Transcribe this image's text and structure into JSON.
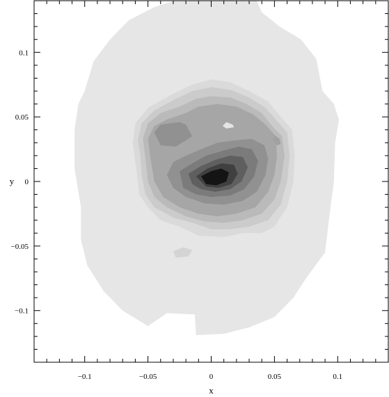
{
  "chart_data": {
    "type": "contour",
    "title": "",
    "xlabel": "x",
    "ylabel": "y",
    "xlim": [
      -0.14,
      0.14
    ],
    "ylim": [
      -0.14,
      0.14
    ],
    "xticks": [
      -0.1,
      -0.05,
      0,
      0.05,
      0.1
    ],
    "yticks": [
      -0.1,
      -0.05,
      0,
      0.05,
      0.1
    ],
    "xtick_labels": [
      "−0.1",
      "−0.05",
      "0",
      "0.05",
      "0.1"
    ],
    "ytick_labels": [
      "−0.1",
      "−0.05",
      "0",
      "0.05",
      "0.1"
    ],
    "grid": false,
    "levels": [
      {
        "level": 1,
        "color": "#e6e6e6",
        "polygon": [
          [
            -0.029,
            0.14
          ],
          [
            0.036,
            0.14
          ],
          [
            0.04,
            0.131
          ],
          [
            0.054,
            0.12
          ],
          [
            0.071,
            0.11
          ],
          [
            0.083,
            0.095
          ],
          [
            0.088,
            0.07
          ],
          [
            0.097,
            0.06
          ],
          [
            0.101,
            0.048
          ],
          [
            0.098,
            0.03
          ],
          [
            0.097,
            0.0
          ],
          [
            0.093,
            -0.03
          ],
          [
            0.09,
            -0.055
          ],
          [
            0.075,
            -0.075
          ],
          [
            0.065,
            -0.09
          ],
          [
            0.05,
            -0.105
          ],
          [
            0.03,
            -0.113
          ],
          [
            0.01,
            -0.118
          ],
          [
            -0.012,
            -0.119
          ],
          [
            -0.013,
            -0.103
          ],
          [
            -0.035,
            -0.102
          ],
          [
            -0.05,
            -0.112
          ],
          [
            -0.07,
            -0.1
          ],
          [
            -0.085,
            -0.085
          ],
          [
            -0.098,
            -0.065
          ],
          [
            -0.103,
            -0.045
          ],
          [
            -0.103,
            -0.02
          ],
          [
            -0.108,
            0.01
          ],
          [
            -0.108,
            0.04
          ],
          [
            -0.105,
            0.06
          ],
          [
            -0.1,
            0.07
          ],
          [
            -0.093,
            0.093
          ],
          [
            -0.08,
            0.11
          ],
          [
            -0.065,
            0.125
          ],
          [
            -0.045,
            0.135
          ]
        ]
      },
      {
        "level": 2,
        "color": "#dadada",
        "polygon": [
          [
            -0.062,
            0.03
          ],
          [
            -0.06,
            0.045
          ],
          [
            -0.05,
            0.057
          ],
          [
            -0.03,
            0.068
          ],
          [
            -0.015,
            0.075
          ],
          [
            0.0,
            0.079
          ],
          [
            0.015,
            0.077
          ],
          [
            0.03,
            0.07
          ],
          [
            0.045,
            0.062
          ],
          [
            0.055,
            0.05
          ],
          [
            0.064,
            0.04
          ],
          [
            0.066,
            0.02
          ],
          [
            0.065,
            0.0
          ],
          [
            0.06,
            -0.02
          ],
          [
            0.05,
            -0.035
          ],
          [
            0.04,
            -0.04
          ],
          [
            0.025,
            -0.04
          ],
          [
            0.01,
            -0.043
          ],
          [
            -0.01,
            -0.042
          ],
          [
            -0.025,
            -0.035
          ],
          [
            -0.04,
            -0.03
          ],
          [
            -0.05,
            -0.02
          ],
          [
            -0.057,
            -0.01
          ],
          [
            -0.058,
            0.0
          ],
          [
            -0.06,
            0.015
          ]
        ]
      },
      {
        "level": 3,
        "color": "#cbcbcb",
        "polygon": [
          [
            -0.058,
            0.032
          ],
          [
            -0.055,
            0.045
          ],
          [
            -0.045,
            0.055
          ],
          [
            -0.03,
            0.063
          ],
          [
            -0.015,
            0.07
          ],
          [
            0.0,
            0.073
          ],
          [
            0.015,
            0.071
          ],
          [
            0.03,
            0.065
          ],
          [
            0.043,
            0.057
          ],
          [
            0.052,
            0.047
          ],
          [
            0.06,
            0.038
          ],
          [
            0.062,
            0.02
          ],
          [
            0.06,
            0.0
          ],
          [
            0.055,
            -0.018
          ],
          [
            0.045,
            -0.03
          ],
          [
            0.03,
            -0.035
          ],
          [
            0.015,
            -0.037
          ],
          [
            0.0,
            -0.037
          ],
          [
            -0.015,
            -0.032
          ],
          [
            -0.03,
            -0.028
          ],
          [
            -0.045,
            -0.02
          ],
          [
            -0.052,
            -0.01
          ],
          [
            -0.055,
            0.005
          ],
          [
            -0.056,
            0.02
          ]
        ]
      },
      {
        "level": 4,
        "color": "#bababa",
        "polygon": [
          [
            -0.054,
            0.033
          ],
          [
            -0.05,
            0.045
          ],
          [
            -0.04,
            0.053
          ],
          [
            -0.025,
            0.058
          ],
          [
            -0.012,
            0.064
          ],
          [
            0.0,
            0.066
          ],
          [
            0.015,
            0.065
          ],
          [
            0.028,
            0.06
          ],
          [
            0.04,
            0.053
          ],
          [
            0.048,
            0.043
          ],
          [
            0.056,
            0.035
          ],
          [
            0.058,
            0.02
          ],
          [
            0.055,
            0.0
          ],
          [
            0.05,
            -0.014
          ],
          [
            0.04,
            -0.025
          ],
          [
            0.025,
            -0.03
          ],
          [
            0.01,
            -0.032
          ],
          [
            -0.005,
            -0.031
          ],
          [
            -0.02,
            -0.027
          ],
          [
            -0.035,
            -0.02
          ],
          [
            -0.045,
            -0.012
          ],
          [
            -0.05,
            0.0
          ],
          [
            -0.052,
            0.018
          ]
        ]
      },
      {
        "level": 5,
        "color": "#a6a6a6",
        "polygon": [
          [
            -0.05,
            0.033
          ],
          [
            -0.045,
            0.043
          ],
          [
            -0.035,
            0.048
          ],
          [
            -0.02,
            0.053
          ],
          [
            -0.01,
            0.058
          ],
          [
            0.005,
            0.06
          ],
          [
            0.02,
            0.058
          ],
          [
            0.033,
            0.052
          ],
          [
            0.043,
            0.044
          ],
          [
            0.051,
            0.035
          ],
          [
            0.052,
            0.02
          ],
          [
            0.05,
            0.005
          ],
          [
            0.045,
            -0.008
          ],
          [
            0.035,
            -0.02
          ],
          [
            0.02,
            -0.025
          ],
          [
            0.005,
            -0.027
          ],
          [
            -0.01,
            -0.025
          ],
          [
            -0.025,
            -0.02
          ],
          [
            -0.038,
            -0.012
          ],
          [
            -0.045,
            0.0
          ],
          [
            -0.048,
            0.018
          ]
        ]
      },
      {
        "level": 6,
        "color": "#919191",
        "polygon": [
          [
            -0.045,
            0.038
          ],
          [
            -0.04,
            0.044
          ],
          [
            -0.025,
            0.046
          ],
          [
            -0.02,
            0.044
          ],
          [
            -0.015,
            0.035
          ],
          [
            -0.028,
            0.027
          ],
          [
            -0.04,
            0.028
          ]
        ]
      },
      {
        "level": 6,
        "color": "#919191",
        "polygon": [
          [
            -0.03,
            0.015
          ],
          [
            -0.02,
            0.02
          ],
          [
            -0.008,
            0.025
          ],
          [
            0.005,
            0.03
          ],
          [
            0.02,
            0.032
          ],
          [
            0.032,
            0.033
          ],
          [
            0.042,
            0.028
          ],
          [
            0.045,
            0.018
          ],
          [
            0.043,
            0.005
          ],
          [
            0.036,
            -0.008
          ],
          [
            0.025,
            -0.015
          ],
          [
            0.01,
            -0.018
          ],
          [
            -0.005,
            -0.017
          ],
          [
            -0.02,
            -0.012
          ],
          [
            -0.03,
            -0.005
          ],
          [
            -0.035,
            0.005
          ]
        ]
      },
      {
        "level": 7,
        "color": "#7b7b7b",
        "polygon": [
          [
            -0.025,
            0.008
          ],
          [
            -0.015,
            0.014
          ],
          [
            -0.004,
            0.02
          ],
          [
            0.01,
            0.024
          ],
          [
            0.022,
            0.027
          ],
          [
            0.032,
            0.025
          ],
          [
            0.037,
            0.016
          ],
          [
            0.034,
            0.004
          ],
          [
            0.026,
            -0.006
          ],
          [
            0.015,
            -0.011
          ],
          [
            0.0,
            -0.012
          ],
          [
            -0.012,
            -0.01
          ],
          [
            -0.022,
            -0.005
          ]
        ]
      },
      {
        "level": 8,
        "color": "#5f5f5f",
        "polygon": [
          [
            -0.018,
            0.006
          ],
          [
            -0.008,
            0.012
          ],
          [
            0.004,
            0.017
          ],
          [
            0.015,
            0.02
          ],
          [
            0.025,
            0.019
          ],
          [
            0.029,
            0.011
          ],
          [
            0.024,
            0.0
          ],
          [
            0.015,
            -0.006
          ],
          [
            0.003,
            -0.008
          ],
          [
            -0.008,
            -0.006
          ],
          [
            -0.015,
            -0.002
          ]
        ]
      },
      {
        "level": 9,
        "color": "#404040",
        "polygon": [
          [
            -0.012,
            0.004
          ],
          [
            -0.003,
            0.01
          ],
          [
            0.008,
            0.014
          ],
          [
            0.018,
            0.013
          ],
          [
            0.021,
            0.006
          ],
          [
            0.016,
            -0.002
          ],
          [
            0.006,
            -0.005
          ],
          [
            -0.004,
            -0.004
          ]
        ]
      },
      {
        "level": 10,
        "color": "#141414",
        "polygon": [
          [
            -0.008,
            0.004
          ],
          [
            0.0,
            0.008
          ],
          [
            0.008,
            0.01
          ],
          [
            0.014,
            0.007
          ],
          [
            0.012,
            0.0
          ],
          [
            0.004,
            -0.003
          ],
          [
            -0.004,
            -0.002
          ]
        ]
      },
      {
        "level": 1,
        "color": "#d4d4d4",
        "polygon": [
          [
            -0.03,
            -0.054
          ],
          [
            -0.022,
            -0.051
          ],
          [
            -0.015,
            -0.053
          ],
          [
            -0.018,
            -0.058
          ],
          [
            -0.028,
            -0.059
          ]
        ]
      },
      {
        "level": 1,
        "color": "#e4e4e4",
        "polygon": [
          [
            0.012,
            0.046
          ],
          [
            0.017,
            0.044
          ],
          [
            0.018,
            0.042
          ],
          [
            0.012,
            0.041
          ],
          [
            0.009,
            0.043
          ]
        ]
      },
      {
        "level": 6,
        "color": "#a0a0a0",
        "polygon": [
          [
            0.05,
            0.036
          ],
          [
            0.054,
            0.033
          ],
          [
            0.055,
            0.029
          ],
          [
            0.052,
            0.028
          ],
          [
            0.049,
            0.032
          ]
        ]
      }
    ]
  }
}
